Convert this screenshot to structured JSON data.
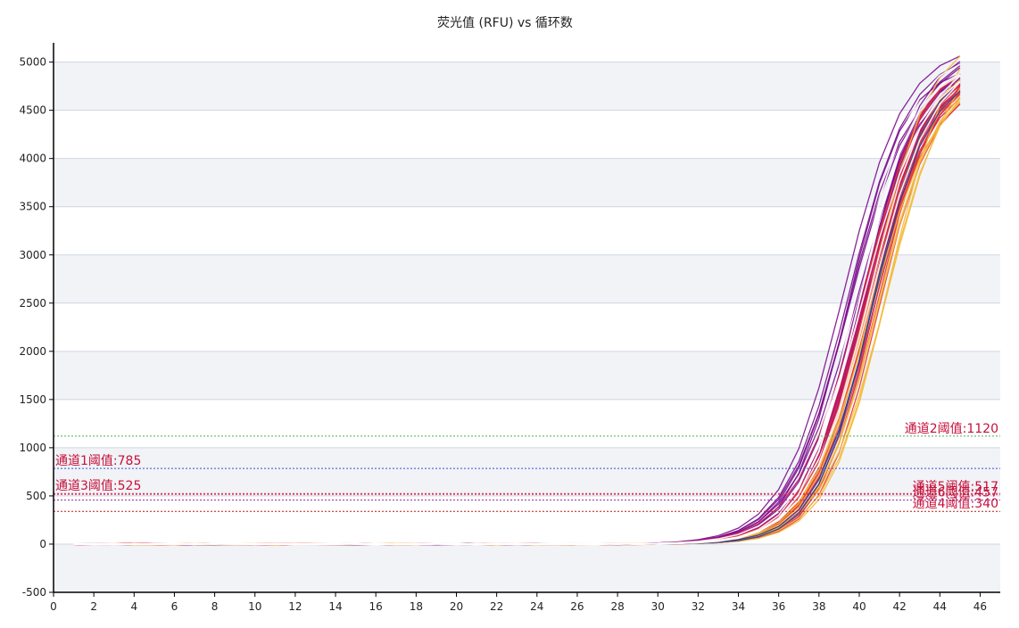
{
  "chart_data": {
    "type": "line",
    "title": "荧光值 (RFU) vs 循环数",
    "xlabel": "",
    "ylabel": "",
    "xlim": [
      0,
      47
    ],
    "ylim": [
      -500,
      5200
    ],
    "x_ticks": [
      0,
      2,
      4,
      6,
      8,
      10,
      12,
      14,
      16,
      18,
      20,
      22,
      24,
      26,
      28,
      30,
      32,
      34,
      36,
      38,
      40,
      42,
      44,
      46
    ],
    "y_ticks": [
      -500,
      0,
      500,
      1000,
      1500,
      2000,
      2500,
      3000,
      3500,
      4000,
      4500,
      5000
    ],
    "grid": "horizontal bands",
    "legend": "none",
    "thresholds": [
      {
        "label": "通道1阈值:785",
        "value": 785,
        "color": "#3a4fd0",
        "anchor": "left"
      },
      {
        "label": "通道2阈值:1120",
        "value": 1120,
        "color": "#4caf50",
        "anchor": "right"
      },
      {
        "label": "通道3阈值:525",
        "value": 525,
        "color": "#e53935",
        "anchor": "left"
      },
      {
        "label": "通道4阈值:340",
        "value": 340,
        "color": "#b71c1c",
        "anchor": "right"
      },
      {
        "label": "通道5阈值:517",
        "value": 517,
        "color": "#d81b60",
        "anchor": "right"
      },
      {
        "label": "通道6阈值:457",
        "value": 457,
        "color": "#8e24aa",
        "anchor": "right"
      }
    ],
    "curve_model": {
      "cycles": [
        1,
        45
      ],
      "description": "amplification curves, sigmoid rising from ~0 near cycle 32 to ~4500-5200 at cycle 45",
      "groups": [
        {
          "color": "#7b0d8c",
          "count": 14,
          "midpoint_range": [
            39.2,
            40.4
          ],
          "plateau_range": [
            4900,
            5200
          ]
        },
        {
          "color": "#c2185b",
          "count": 14,
          "midpoint_range": [
            39.8,
            40.8
          ],
          "plateau_range": [
            4850,
            5150
          ]
        },
        {
          "color": "#e53935",
          "count": 10,
          "midpoint_range": [
            40.0,
            41.0
          ],
          "plateau_range": [
            4800,
            5100
          ]
        },
        {
          "color": "#f4b93a",
          "count": 8,
          "midpoint_range": [
            40.4,
            41.6
          ],
          "plateau_range": [
            4700,
            5500
          ]
        },
        {
          "color": "#2f3a8f",
          "count": 2,
          "midpoint_range": [
            40.6,
            41.0
          ],
          "plateau_range": [
            4900,
            5000
          ]
        },
        {
          "color": "#ffffff",
          "count": 6,
          "midpoint_range": [
            39.6,
            40.6
          ],
          "plateau_range": [
            4950,
            5100
          ]
        }
      ]
    }
  }
}
